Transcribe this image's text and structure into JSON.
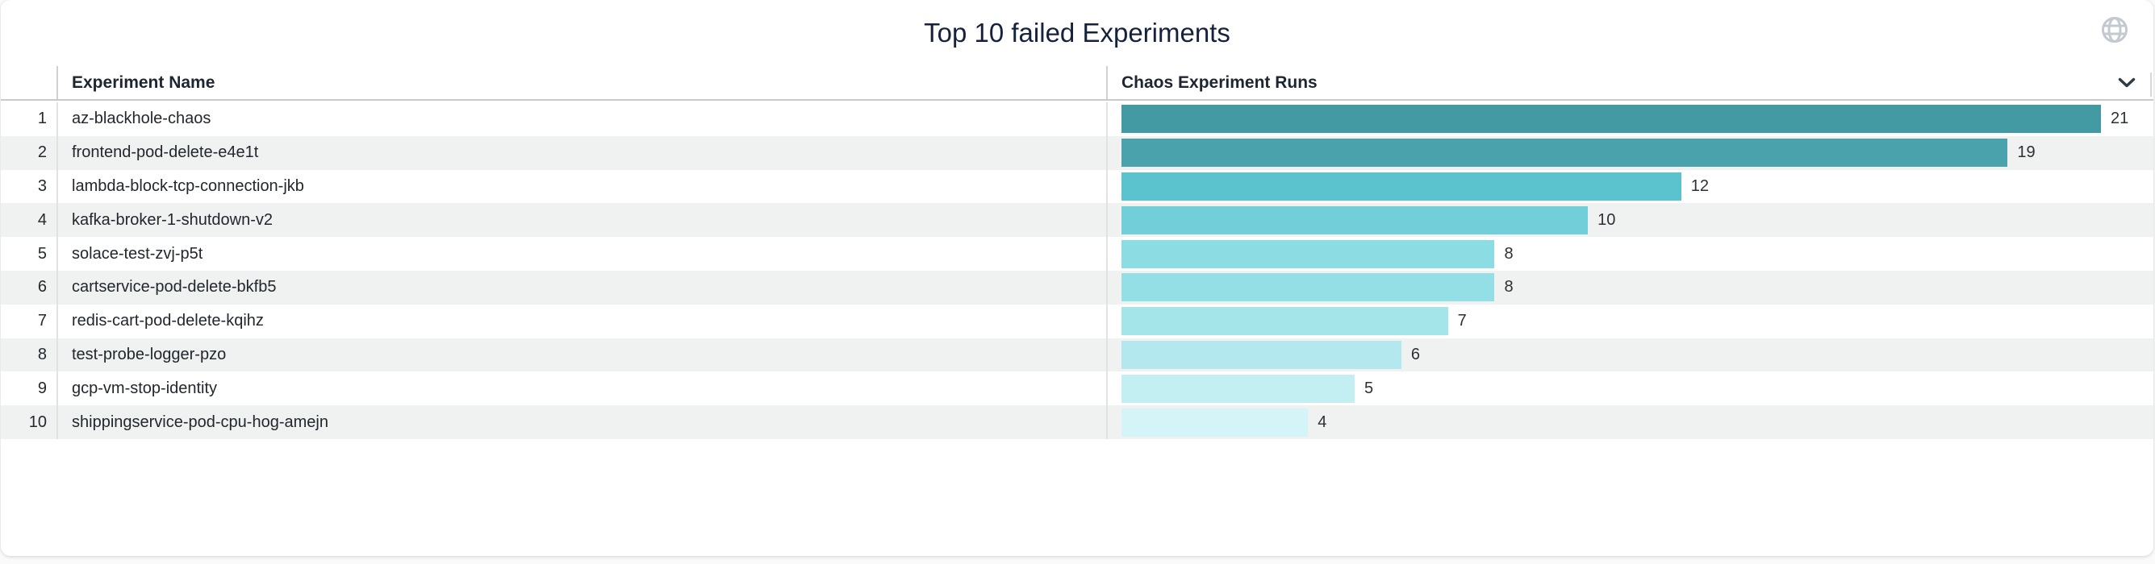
{
  "card": {
    "title": "Top 10 failed Experiments"
  },
  "icons": {
    "globe": "globe-icon",
    "column_menu": "chevron-down-icon"
  },
  "table": {
    "headers": {
      "rank": "",
      "name": "Experiment Name",
      "runs": "Chaos Experiment Runs"
    },
    "rows": [
      {
        "rank": "1",
        "name": "az-blackhole-chaos",
        "runs": 21
      },
      {
        "rank": "2",
        "name": "frontend-pod-delete-e4e1t",
        "runs": 19
      },
      {
        "rank": "3",
        "name": "lambda-block-tcp-connection-jkb",
        "runs": 12
      },
      {
        "rank": "4",
        "name": "kafka-broker-1-shutdown-v2",
        "runs": 10
      },
      {
        "rank": "5",
        "name": "solace-test-zvj-p5t",
        "runs": 8
      },
      {
        "rank": "6",
        "name": "cartservice-pod-delete-bkfb5",
        "runs": 8
      },
      {
        "rank": "7",
        "name": "redis-cart-pod-delete-kqihz",
        "runs": 7
      },
      {
        "rank": "8",
        "name": "test-probe-logger-pzo",
        "runs": 6
      },
      {
        "rank": "9",
        "name": "gcp-vm-stop-identity",
        "runs": 5
      },
      {
        "rank": "10",
        "name": "shippingservice-pod-cpu-hog-amejn",
        "runs": 4
      }
    ]
  },
  "chart_data": {
    "type": "bar",
    "orientation": "horizontal",
    "title": "Top 10 failed Experiments",
    "categories": [
      "az-blackhole-chaos",
      "frontend-pod-delete-e4e1t",
      "lambda-block-tcp-connection-jkb",
      "kafka-broker-1-shutdown-v2",
      "solace-test-zvj-p5t",
      "cartservice-pod-delete-bkfb5",
      "redis-cart-pod-delete-kqihz",
      "test-probe-logger-pzo",
      "gcp-vm-stop-identity",
      "shippingservice-pod-cpu-hog-amejn"
    ],
    "values": [
      21,
      19,
      12,
      10,
      8,
      8,
      7,
      6,
      5,
      4
    ],
    "xlabel": "Chaos Experiment Runs",
    "ylabel": "Experiment Name",
    "xlim": [
      0,
      22
    ],
    "grid": false,
    "legend": "none",
    "value_labels": true,
    "bar_colors": [
      "#439aa3",
      "#4aa3ac",
      "#5ac3ce",
      "#72cfd9",
      "#8cdce3",
      "#93dfe5",
      "#a4e5ea",
      "#b3e9ee",
      "#c3eef2",
      "#d4f4f7"
    ]
  },
  "colors": {
    "page_background": "#fafafa",
    "card_background": "#ffffff",
    "row_stripe": "#f0f1f1",
    "title_text": "#16223c",
    "header_text": "#1d2630",
    "row_text": "#22272e",
    "value_text": "#2b3036",
    "header_divider": "#c7c9ca",
    "column_divider": "#e0e2e3",
    "globe_icon": "#c3c9d0",
    "chevron_icon": "#2f3a45"
  }
}
